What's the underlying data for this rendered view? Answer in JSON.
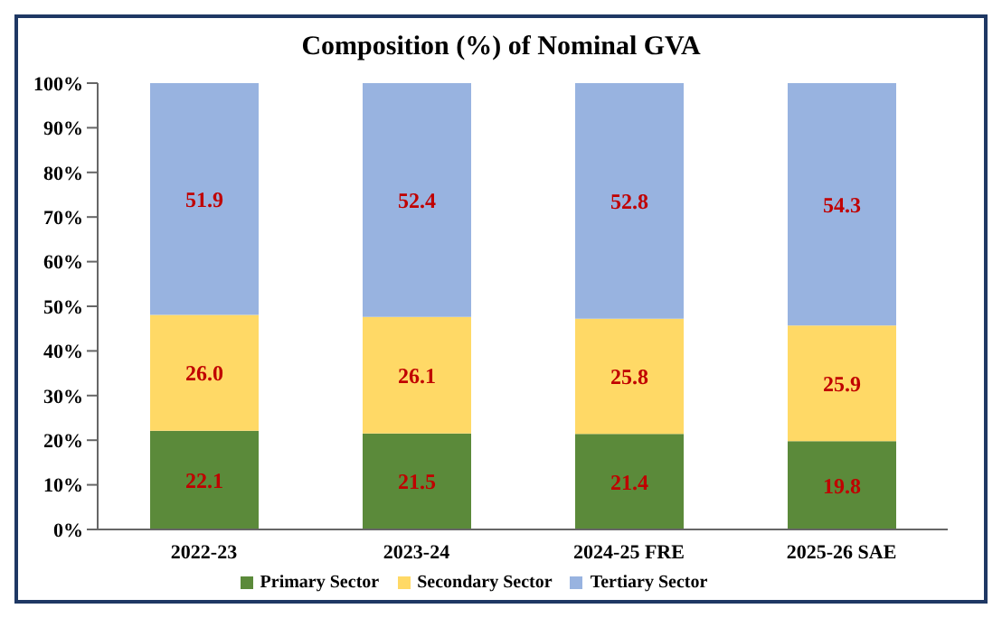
{
  "chart_data": {
    "type": "bar",
    "title": "Composition (%) of Nominal GVA",
    "stacked": true,
    "categories": [
      "2022-23",
      "2023-24",
      "2024-25 FRE",
      "2025-26 SAE"
    ],
    "series": [
      {
        "name": "Primary Sector",
        "color": "#5b8a3a",
        "values": [
          22.1,
          21.5,
          21.4,
          19.8
        ],
        "value_labels": [
          "22.1",
          "21.5",
          "21.4",
          "19.8"
        ]
      },
      {
        "name": "Secondary Sector",
        "color": "#ffd966",
        "values": [
          26.0,
          26.1,
          25.8,
          25.9
        ],
        "value_labels": [
          "26.0",
          "26.1",
          "25.8",
          "25.9"
        ]
      },
      {
        "name": "Tertiary Sector",
        "color": "#98b3e0",
        "values": [
          51.9,
          52.4,
          52.8,
          54.3
        ],
        "value_labels": [
          "51.9",
          "52.4",
          "52.8",
          "54.3"
        ]
      }
    ],
    "ylim": [
      0,
      100
    ],
    "yticks": [
      {
        "value": 0,
        "label": "0%"
      },
      {
        "value": 10,
        "label": "10%"
      },
      {
        "value": 20,
        "label": "20%"
      },
      {
        "value": 30,
        "label": "30%"
      },
      {
        "value": 40,
        "label": "40%"
      },
      {
        "value": 50,
        "label": "50%"
      },
      {
        "value": 60,
        "label": "60%"
      },
      {
        "value": 70,
        "label": "70%"
      },
      {
        "value": 80,
        "label": "80%"
      },
      {
        "value": 90,
        "label": "90%"
      },
      {
        "value": 100,
        "label": "100%"
      }
    ],
    "legend": "bottom",
    "grid": false
  }
}
